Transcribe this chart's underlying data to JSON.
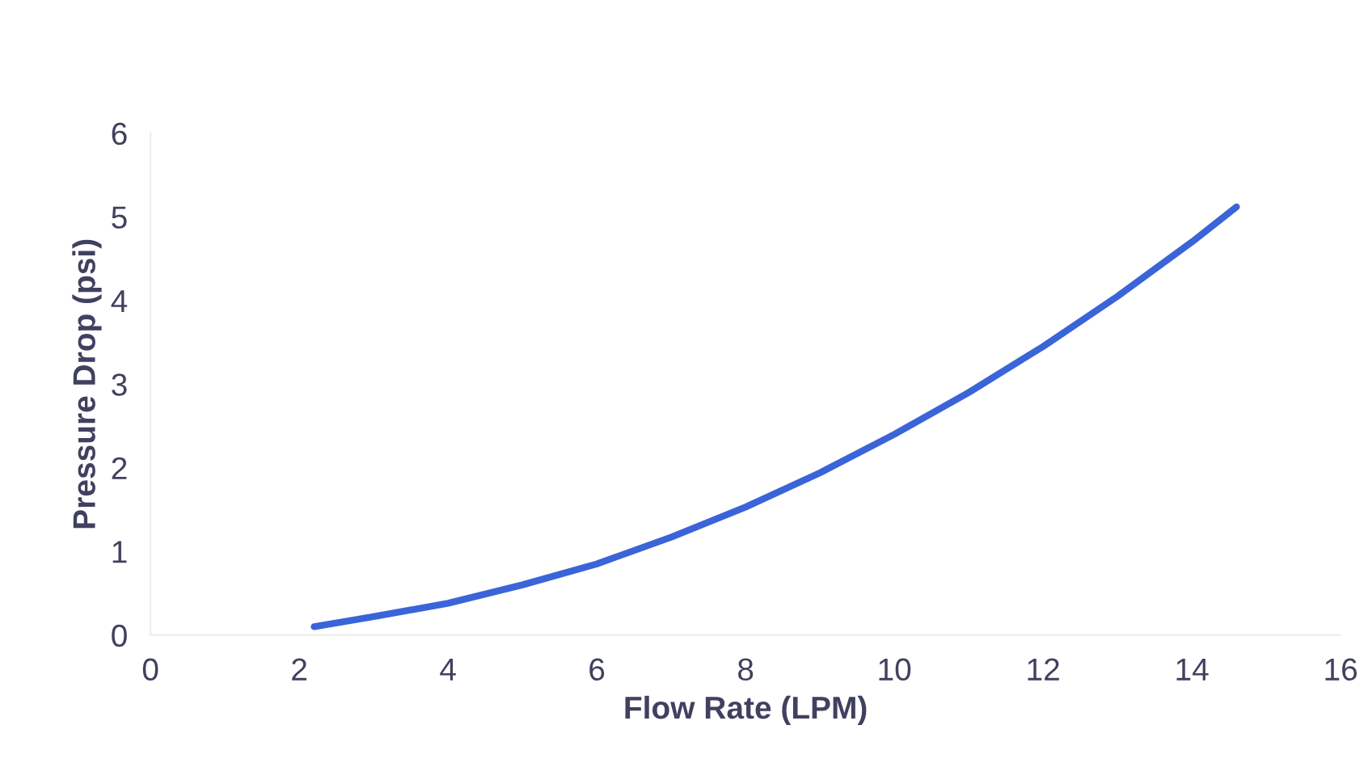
{
  "chart_data": {
    "type": "line",
    "xlabel": "Flow Rate (LPM)",
    "ylabel": "Pressure Drop (psi)",
    "series": [
      {
        "color": "#3a64d8",
        "x": [
          2.2,
          3,
          4,
          5,
          6,
          7,
          8,
          9,
          10,
          11,
          12,
          13,
          14,
          14.6
        ],
        "values": [
          0.1,
          0.22,
          0.38,
          0.6,
          0.85,
          1.17,
          1.53,
          1.94,
          2.4,
          2.9,
          3.45,
          4.05,
          4.7,
          5.12
        ]
      }
    ],
    "xlim": [
      0,
      16
    ],
    "xticks": [
      0,
      2,
      4,
      6,
      8,
      10,
      12,
      14,
      16
    ],
    "ylim": [
      0,
      6
    ],
    "yticks": [
      0,
      1,
      2,
      3,
      4,
      5,
      6
    ],
    "grid": false,
    "legend": false,
    "marker": "none",
    "line_style": "solid"
  }
}
